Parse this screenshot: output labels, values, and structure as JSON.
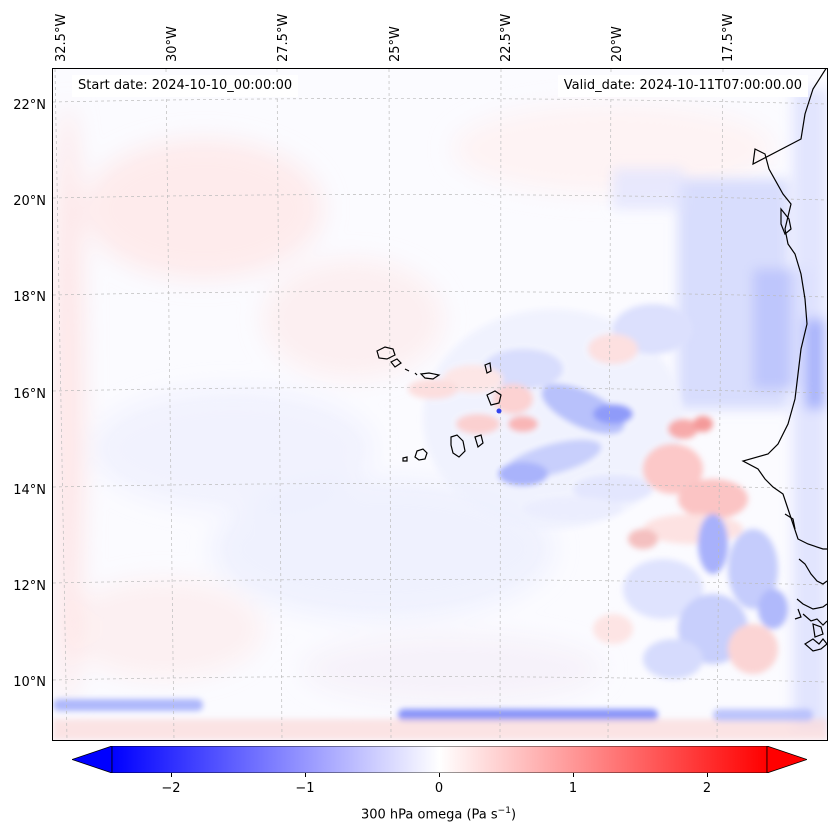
{
  "header": {
    "start_date": "Start date: 2024-10-10_00:00:00",
    "valid_date": "Valid_date: 2024-10-11T07:00:00.00"
  },
  "map": {
    "lon_labels": [
      "32.5°W",
      "30°W",
      "27.5°W",
      "25°W",
      "22.5°W",
      "20°W",
      "17.5°W"
    ],
    "lat_labels": [
      "22°N",
      "20°N",
      "18°N",
      "16°N",
      "14°N",
      "12°N",
      "10°N"
    ],
    "field": "300 hPa omega",
    "colormap": "bwr",
    "neg_color": "#0000ff",
    "pos_color": "#ff0000",
    "coastline_color": "#000000",
    "gridline_style": "dashed-gray"
  },
  "colorbar": {
    "tick_labels": [
      "−2",
      "−1",
      "0",
      "1",
      "2"
    ],
    "range": [
      -2.5,
      2.5
    ],
    "extend": "both",
    "label": "300 hPa omega (Pa s",
    "label_sup": "−1",
    "label_end": ")"
  }
}
